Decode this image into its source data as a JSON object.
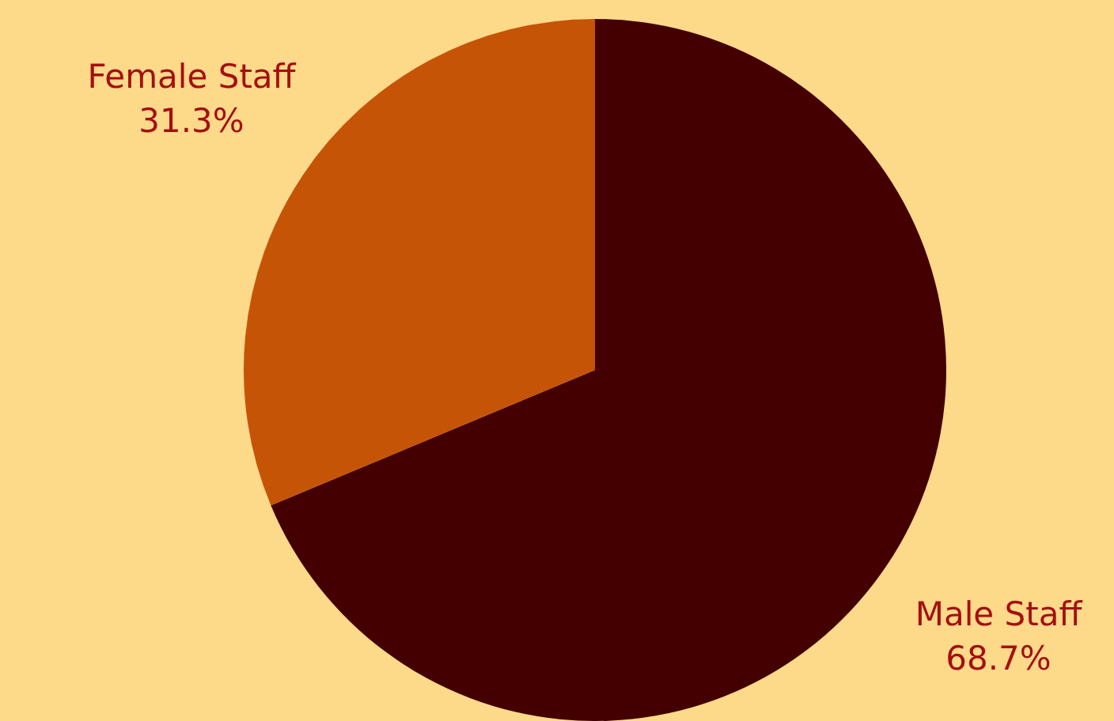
{
  "chart_data": {
    "type": "pie",
    "categories": [
      "Male Staff",
      "Female Staff"
    ],
    "values": [
      68.7,
      31.3
    ],
    "colors": [
      "#440000",
      "#c65407"
    ],
    "value_labels": [
      "68.7%",
      "31.3%"
    ],
    "legend": false
  }
}
